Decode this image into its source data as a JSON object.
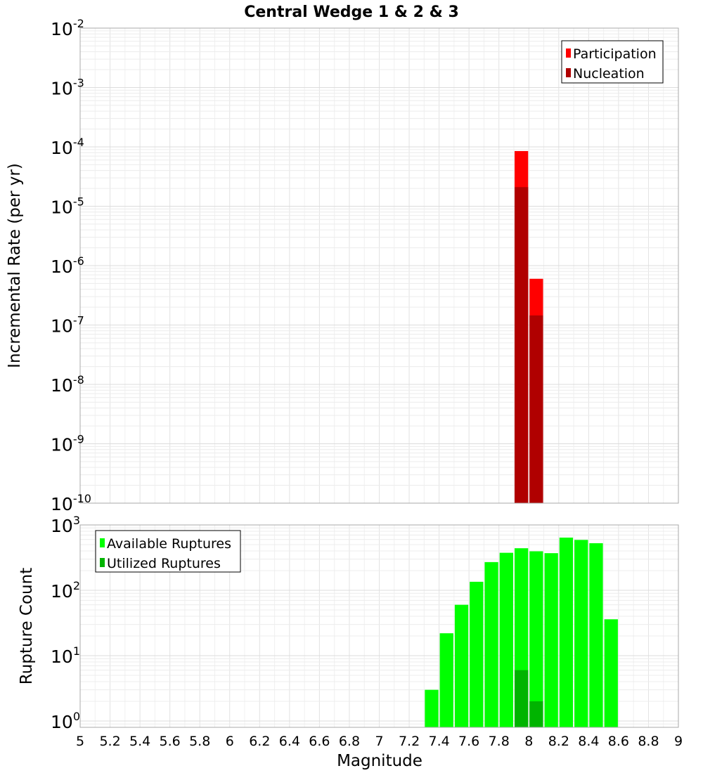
{
  "chart_data": [
    {
      "type": "bar",
      "title": "Central Wedge 1 & 2 & 3",
      "xlabel": "",
      "ylabel": "Incremental Rate (per yr)",
      "yscale": "log",
      "xlim": [
        5,
        9
      ],
      "ylim": [
        1e-10,
        0.01
      ],
      "ytick_exponents": [
        "-10",
        "-9",
        "-8",
        "-7",
        "-6",
        "-5",
        "-4",
        "-3",
        "-2"
      ],
      "ytick_base": "10",
      "legend_position": "top-right",
      "series": [
        {
          "name": "Participation",
          "color": "#ff0000",
          "x": [
            7.95,
            8.05
          ],
          "values": [
            8.5e-05,
            6e-07
          ]
        },
        {
          "name": "Nucleation",
          "color": "#b00000",
          "x": [
            7.95,
            8.05
          ],
          "values": [
            2.1e-05,
            1.45e-07
          ]
        }
      ]
    },
    {
      "type": "bar",
      "title": "",
      "xlabel": "Magnitude",
      "ylabel": "Rupture Count",
      "yscale": "log",
      "xlim": [
        5,
        9
      ],
      "ylim": [
        0.8,
        1000
      ],
      "xticks": [
        "5",
        "5.2",
        "5.4",
        "5.6",
        "5.8",
        "6",
        "6.2",
        "6.4",
        "6.6",
        "6.8",
        "7",
        "7.2",
        "7.4",
        "7.6",
        "7.8",
        "8",
        "8.2",
        "8.4",
        "8.6",
        "8.8",
        "9"
      ],
      "ytick_exponents": [
        "0",
        "1",
        "2",
        "3"
      ],
      "ytick_base": "10",
      "legend_position": "top-left",
      "series": [
        {
          "name": "Available Ruptures",
          "color": "#00ff00",
          "x": [
            7.35,
            7.45,
            7.55,
            7.65,
            7.75,
            7.85,
            7.95,
            8.05,
            8.15,
            8.25,
            8.35,
            8.45,
            8.55
          ],
          "values": [
            3,
            22,
            60,
            135,
            270,
            375,
            440,
            395,
            370,
            640,
            590,
            525,
            36
          ]
        },
        {
          "name": "Utilized Ruptures",
          "color": "#00b400",
          "x": [
            7.95,
            8.05
          ],
          "values": [
            6,
            2
          ]
        }
      ]
    }
  ]
}
